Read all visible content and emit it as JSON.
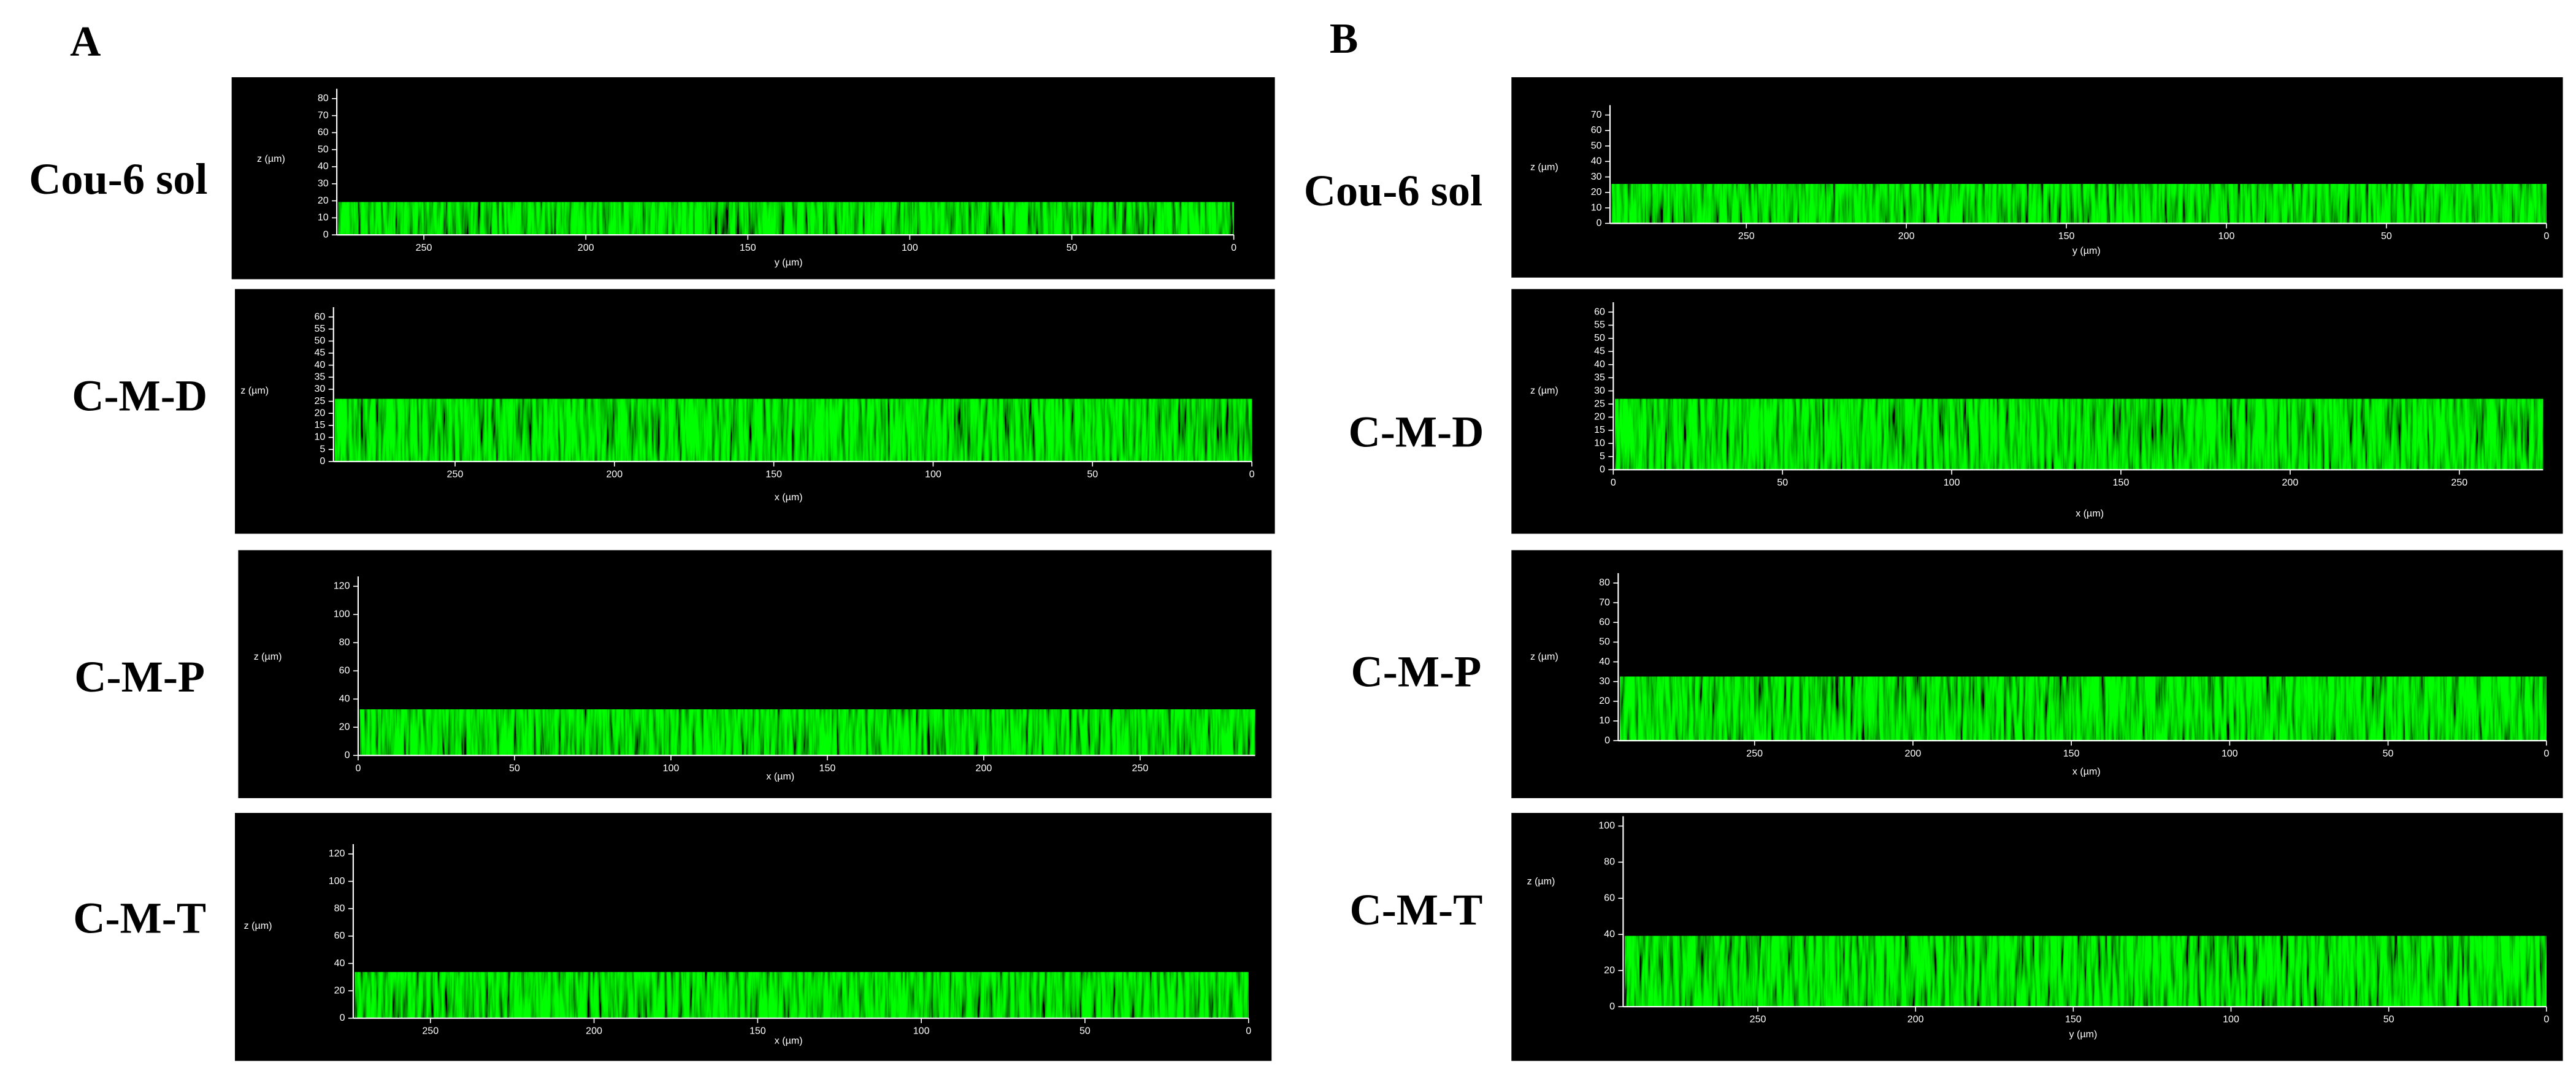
{
  "panels": [
    {
      "label": "A",
      "rows": [
        {
          "name": "Cou-6 sol",
          "z_label": "z (µm)",
          "z_ticks": [
            0,
            10,
            20,
            30,
            40,
            50,
            60,
            70,
            80
          ],
          "h_label": "y (µm)",
          "h_ticks": [
            250,
            200,
            150,
            100,
            50,
            0
          ]
        },
        {
          "name": "C-M-D",
          "z_label": "z (µm)",
          "z_ticks": [
            0,
            5,
            10,
            15,
            20,
            25,
            30,
            35,
            40,
            45,
            50,
            55,
            60
          ],
          "h_label": "x (µm)",
          "h_ticks": [
            250,
            200,
            150,
            100,
            50,
            0
          ]
        },
        {
          "name": "C-M-P",
          "z_label": "z (µm)",
          "z_ticks": [
            0,
            20,
            40,
            60,
            80,
            100,
            120
          ],
          "h_label": "x (µm)",
          "h_ticks": [
            0,
            50,
            100,
            150,
            200,
            250
          ]
        },
        {
          "name": "C-M-T",
          "z_label": "z (µm)",
          "z_ticks": [
            0,
            20,
            40,
            60,
            80,
            100,
            120
          ],
          "h_label": "x (µm)",
          "h_ticks": [
            250,
            200,
            150,
            100,
            50,
            0
          ]
        }
      ]
    },
    {
      "label": "B",
      "rows": [
        {
          "name": "Cou-6 sol",
          "z_label": "z (µm)",
          "z_ticks": [
            0,
            10,
            20,
            30,
            40,
            50,
            60,
            70
          ],
          "h_label": "y (µm)",
          "h_ticks": [
            250,
            200,
            150,
            100,
            50,
            0
          ]
        },
        {
          "name": "C-M-D",
          "z_label": "z (µm)",
          "z_ticks": [
            0,
            5,
            10,
            15,
            20,
            25,
            30,
            35,
            40,
            45,
            50,
            55,
            60
          ],
          "h_label": "x (µm)",
          "h_ticks": [
            0,
            50,
            100,
            150,
            200,
            250
          ]
        },
        {
          "name": "C-M-P",
          "z_label": "z (µm)",
          "z_ticks": [
            0,
            10,
            20,
            30,
            40,
            50,
            60,
            70,
            80
          ],
          "h_label": "x (µm)",
          "h_ticks": [
            250,
            200,
            150,
            100,
            50,
            0
          ]
        },
        {
          "name": "C-M-T",
          "z_label": "z (µm)",
          "z_ticks": [
            0,
            20,
            40,
            60,
            80,
            100
          ],
          "h_label": "y (µm)",
          "h_ticks": [
            250,
            200,
            150,
            100,
            50,
            0
          ]
        }
      ]
    }
  ]
}
